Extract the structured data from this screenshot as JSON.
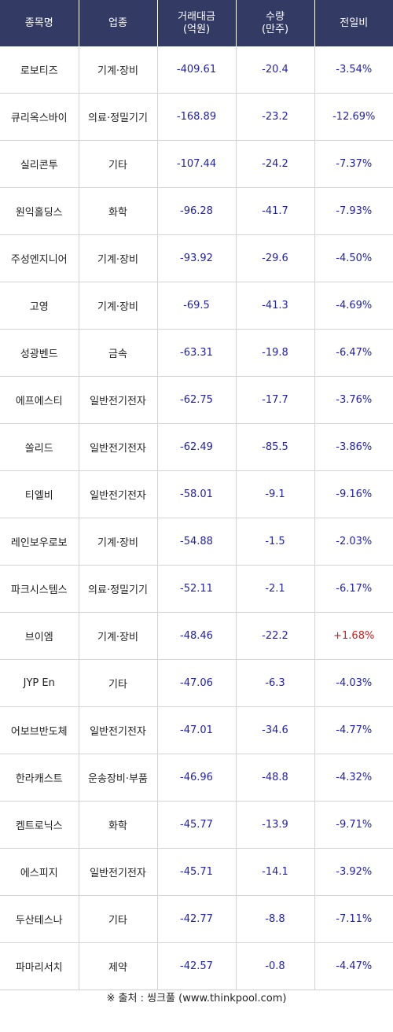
{
  "table": {
    "headers": [
      "종목명",
      "업종",
      "거래대금\n(억원)",
      "수량\n(만주)",
      "전일비"
    ],
    "rows": [
      {
        "name": "로보티즈",
        "sector": "기계·장비",
        "amount": "-409.61",
        "volume": "-20.4",
        "change": "-3.54%"
      },
      {
        "name": "큐리옥스바이",
        "sector": "의료·정밀기기",
        "amount": "-168.89",
        "volume": "-23.2",
        "change": "-12.69%"
      },
      {
        "name": "실리콘투",
        "sector": "기타",
        "amount": "-107.44",
        "volume": "-24.2",
        "change": "-7.37%"
      },
      {
        "name": "원익홀딩스",
        "sector": "화학",
        "amount": "-96.28",
        "volume": "-41.7",
        "change": "-7.93%"
      },
      {
        "name": "주성엔지니어",
        "sector": "기계·장비",
        "amount": "-93.92",
        "volume": "-29.6",
        "change": "-4.50%"
      },
      {
        "name": "고영",
        "sector": "기계·장비",
        "amount": "-69.5",
        "volume": "-41.3",
        "change": "-4.69%"
      },
      {
        "name": "성광벤드",
        "sector": "금속",
        "amount": "-63.31",
        "volume": "-19.8",
        "change": "-6.47%"
      },
      {
        "name": "에프에스티",
        "sector": "일반전기전자",
        "amount": "-62.75",
        "volume": "-17.7",
        "change": "-3.76%"
      },
      {
        "name": "쏠리드",
        "sector": "일반전기전자",
        "amount": "-62.49",
        "volume": "-85.5",
        "change": "-3.86%"
      },
      {
        "name": "티엘비",
        "sector": "일반전기전자",
        "amount": "-58.01",
        "volume": "-9.1",
        "change": "-9.16%"
      },
      {
        "name": "레인보우로보",
        "sector": "기계·장비",
        "amount": "-54.88",
        "volume": "-1.5",
        "change": "-2.03%"
      },
      {
        "name": "파크시스템스",
        "sector": "의료·정밀기기",
        "amount": "-52.11",
        "volume": "-2.1",
        "change": "-6.17%"
      },
      {
        "name": "브이엠",
        "sector": "기계·장비",
        "amount": "-48.46",
        "volume": "-22.2",
        "change": "+1.68%"
      },
      {
        "name": "JYP En",
        "sector": "기타",
        "amount": "-47.06",
        "volume": "-6.3",
        "change": "-4.03%"
      },
      {
        "name": "어보브반도체",
        "sector": "일반전기전자",
        "amount": "-47.01",
        "volume": "-34.6",
        "change": "-4.77%"
      },
      {
        "name": "한라캐스트",
        "sector": "운송장비·부품",
        "amount": "-46.96",
        "volume": "-48.8",
        "change": "-4.32%"
      },
      {
        "name": "켐트로닉스",
        "sector": "화학",
        "amount": "-45.77",
        "volume": "-13.9",
        "change": "-9.71%"
      },
      {
        "name": "에스피지",
        "sector": "일반전기전자",
        "amount": "-45.71",
        "volume": "-14.1",
        "change": "-3.92%"
      },
      {
        "name": "두산테스나",
        "sector": "기타",
        "amount": "-42.77",
        "volume": "-8.8",
        "change": "-7.11%"
      },
      {
        "name": "파마리서치",
        "sector": "제약",
        "amount": "-42.57",
        "volume": "-0.8",
        "change": "-4.47%"
      }
    ]
  },
  "source": "※ 출처 : 씽크풀 (www.thinkpool.com)",
  "colors": {
    "header_bg": "#333a63",
    "number_blue": "#2323a8",
    "positive_red": "#d21e1e"
  }
}
